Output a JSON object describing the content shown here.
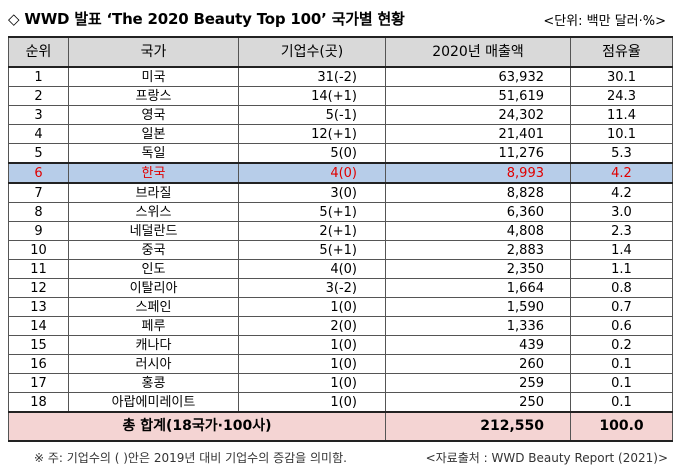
{
  "title": "◇ WWD 발표 ‘The 2020 Beauty Top 100’ 국가별 현황",
  "unit": "<단위: 백만 달러·%>",
  "headers": [
    "순위",
    "국가",
    "기업수(곳)",
    "2020년 매출액",
    "점유율"
  ],
  "rows": [
    {
      "rank": "1",
      "country": "미국",
      "companies": "31(-2)",
      "sales": "63,932",
      "share": "30.1"
    },
    {
      "rank": "2",
      "country": "프랑스",
      "companies": "14(+1)",
      "sales": "51,619",
      "share": "24.3"
    },
    {
      "rank": "3",
      "country": "영국",
      "companies": "5(-1)",
      "sales": "24,302",
      "share": "11.4"
    },
    {
      "rank": "4",
      "country": "일본",
      "companies": "12(+1)",
      "sales": "21,401",
      "share": "10.1"
    },
    {
      "rank": "5",
      "country": "독일",
      "companies": "5(0)",
      "sales": "11,276",
      "share": "5.3"
    },
    {
      "rank": "6",
      "country": "한국",
      "companies": "4(0)",
      "sales": "8,993",
      "share": "4.2"
    },
    {
      "rank": "7",
      "country": "브라질",
      "companies": "3(0)",
      "sales": "8,828",
      "share": "4.2"
    },
    {
      "rank": "8",
      "country": "스위스",
      "companies": "5(+1)",
      "sales": "6,360",
      "share": "3.0"
    },
    {
      "rank": "9",
      "country": "네덜란드",
      "companies": "2(+1)",
      "sales": "4,808",
      "share": "2.3"
    },
    {
      "rank": "10",
      "country": "중국",
      "companies": "5(+1)",
      "sales": "2,883",
      "share": "1.4"
    },
    {
      "rank": "11",
      "country": "인도",
      "companies": "4(0)",
      "sales": "2,350",
      "share": "1.1"
    },
    {
      "rank": "12",
      "country": "이탈리아",
      "companies": "3(-2)",
      "sales": "1,664",
      "share": "0.8"
    },
    {
      "rank": "13",
      "country": "스페인",
      "companies": "1(0)",
      "sales": "1,590",
      "share": "0.7"
    },
    {
      "rank": "14",
      "country": "페루",
      "companies": "2(0)",
      "sales": "1,336",
      "share": "0.6"
    },
    {
      "rank": "15",
      "country": "캐나다",
      "companies": "1(0)",
      "sales": "439",
      "share": "0.2"
    },
    {
      "rank": "16",
      "country": "러시아",
      "companies": "1(0)",
      "sales": "260",
      "share": "0.1"
    },
    {
      "rank": "17",
      "country": "홍콩",
      "companies": "1(0)",
      "sales": "259",
      "share": "0.1"
    },
    {
      "rank": "18",
      "country": "아랍에미레이트",
      "companies": "1(0)",
      "sales": "250",
      "share": "0.1"
    }
  ],
  "highlight_rank": "6",
  "total": {
    "label": "총 합계(18국가·100사)",
    "sales": "212,550",
    "share": "100.0"
  },
  "footnote": {
    "left": "※ 주: 기업수의 ( )안은 2019년 대비 기업수의 증감을 의미함.",
    "right": "<자료출처 : WWD Beauty Report (2021)>"
  },
  "colors": {
    "header_bg": "#d9d9d9",
    "highlight_bg": "#b7cde9",
    "highlight_text": "#e00000",
    "total_bg": "#f4d4d3"
  }
}
